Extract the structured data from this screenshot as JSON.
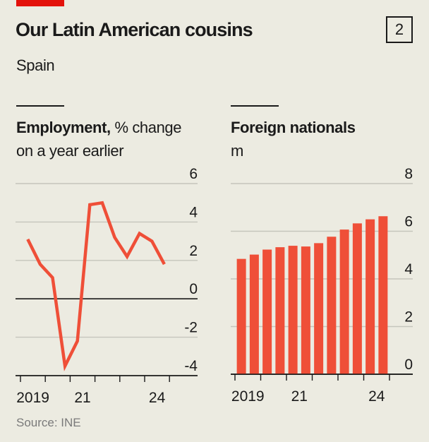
{
  "header": {
    "title": "Our Latin American cousins",
    "chart_number": "2",
    "subtitle": "Spain"
  },
  "source": "Source: INE",
  "colors": {
    "accent_red": "#e3120b",
    "series": "#ef4f38",
    "background": "#ecebe1"
  },
  "chart_data": [
    {
      "type": "line",
      "title_bold": "Employment,",
      "title_rest": " % change",
      "title_line2": "on a year earlier",
      "x": [
        "2019-H1",
        "2019-H2",
        "2020-H1",
        "2020-H2",
        "2021-H1",
        "2021-H2",
        "2022-H1",
        "2022-H2",
        "2023-H1",
        "2023-H2",
        "2024-H1",
        "2024-H2"
      ],
      "series": [
        {
          "values": [
            3.1,
            1.8,
            1.1,
            -3.5,
            -2.2,
            4.9,
            5.0,
            3.2,
            2.2,
            3.4,
            3.0,
            1.8
          ]
        }
      ],
      "ylim": [
        -4,
        6
      ],
      "yticks": [
        "6",
        "4",
        "2",
        "0",
        "-2",
        "-4"
      ],
      "xticks": [
        "2019",
        "21",
        "24"
      ],
      "grid": true
    },
    {
      "type": "bar",
      "title_bold": "Foreign nationals",
      "title_line2": "m",
      "categories": [
        "2019-H1",
        "2019-H2",
        "2020-H1",
        "2020-H2",
        "2021-H1",
        "2021-H2",
        "2022-H1",
        "2022-H2",
        "2023-H1",
        "2023-H2",
        "2024-H1",
        "2024-H2"
      ],
      "values": [
        4.84,
        5.02,
        5.23,
        5.33,
        5.39,
        5.36,
        5.5,
        5.77,
        6.07,
        6.33,
        6.5,
        6.63
      ],
      "ylim": [
        0,
        8
      ],
      "yticks": [
        "8",
        "6",
        "4",
        "2",
        "0"
      ],
      "xticks": [
        "2019",
        "21",
        "24"
      ],
      "grid": true
    }
  ]
}
